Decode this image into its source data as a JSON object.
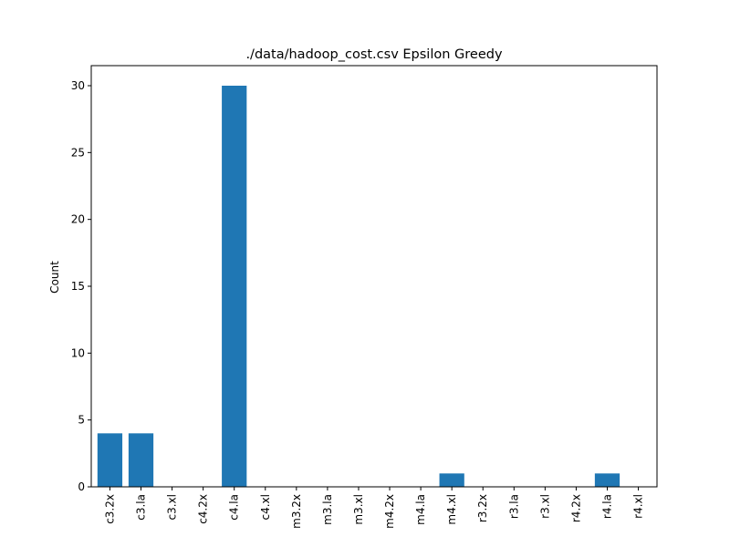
{
  "chart_data": {
    "type": "bar",
    "title": "./data/hadoop_cost.csv Epsilon Greedy",
    "xlabel": "",
    "ylabel": "Count",
    "categories": [
      "c3.2x",
      "c3.la",
      "c3.xl",
      "c4.2x",
      "c4.la",
      "c4.xl",
      "m3.2x",
      "m3.la",
      "m3.xl",
      "m4.2x",
      "m4.la",
      "m4.xl",
      "r3.2x",
      "r3.la",
      "r3.xl",
      "r4.2x",
      "r4.la",
      "r4.xl"
    ],
    "values": [
      4,
      4,
      0,
      0,
      30,
      0,
      0,
      0,
      0,
      0,
      0,
      1,
      0,
      0,
      0,
      0,
      1,
      0
    ],
    "ylim": [
      0,
      31.5
    ],
    "yticks": [
      0,
      5,
      10,
      15,
      20,
      25,
      30
    ],
    "grid": false,
    "legend": "none",
    "bar_color": "#1f77b4"
  }
}
